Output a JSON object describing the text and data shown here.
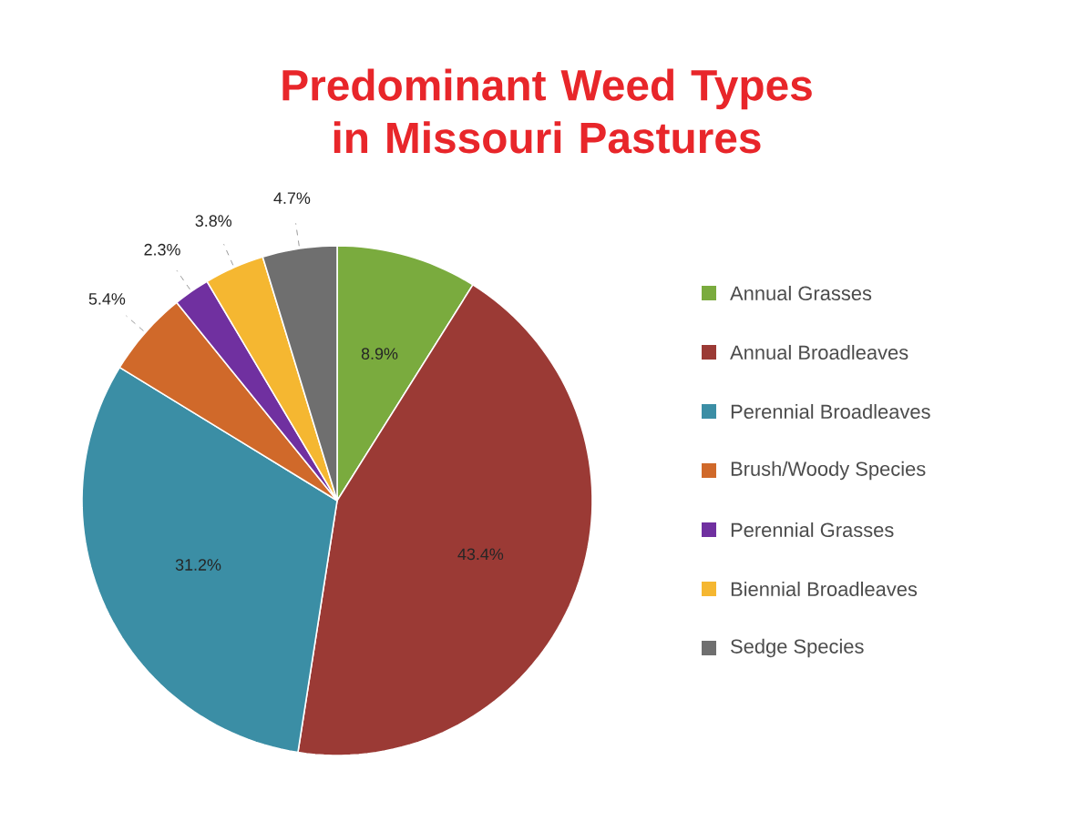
{
  "chart_data": {
    "type": "pie",
    "title": "Predominant Weed Types in Missouri Pastures",
    "categories": [
      "Annual Grasses",
      "Annual Broadleaves",
      "Perennial Broadleaves",
      "Brush/Woody Species",
      "Perennial Grasses",
      "Biennial Broadleaves",
      "Sedge Species"
    ],
    "values": [
      8.9,
      43.4,
      31.2,
      5.4,
      2.3,
      3.8,
      4.7
    ],
    "colors": [
      "#7aab3e",
      "#9b3a35",
      "#3b8ea5",
      "#d0692a",
      "#7030a0",
      "#f5b731",
      "#6f6f6f"
    ],
    "value_labels": [
      "8.9%",
      "43.4%",
      "31.2%",
      "5.4%",
      "2.3%",
      "3.8%",
      "4.7%"
    ],
    "legend": "right"
  }
}
